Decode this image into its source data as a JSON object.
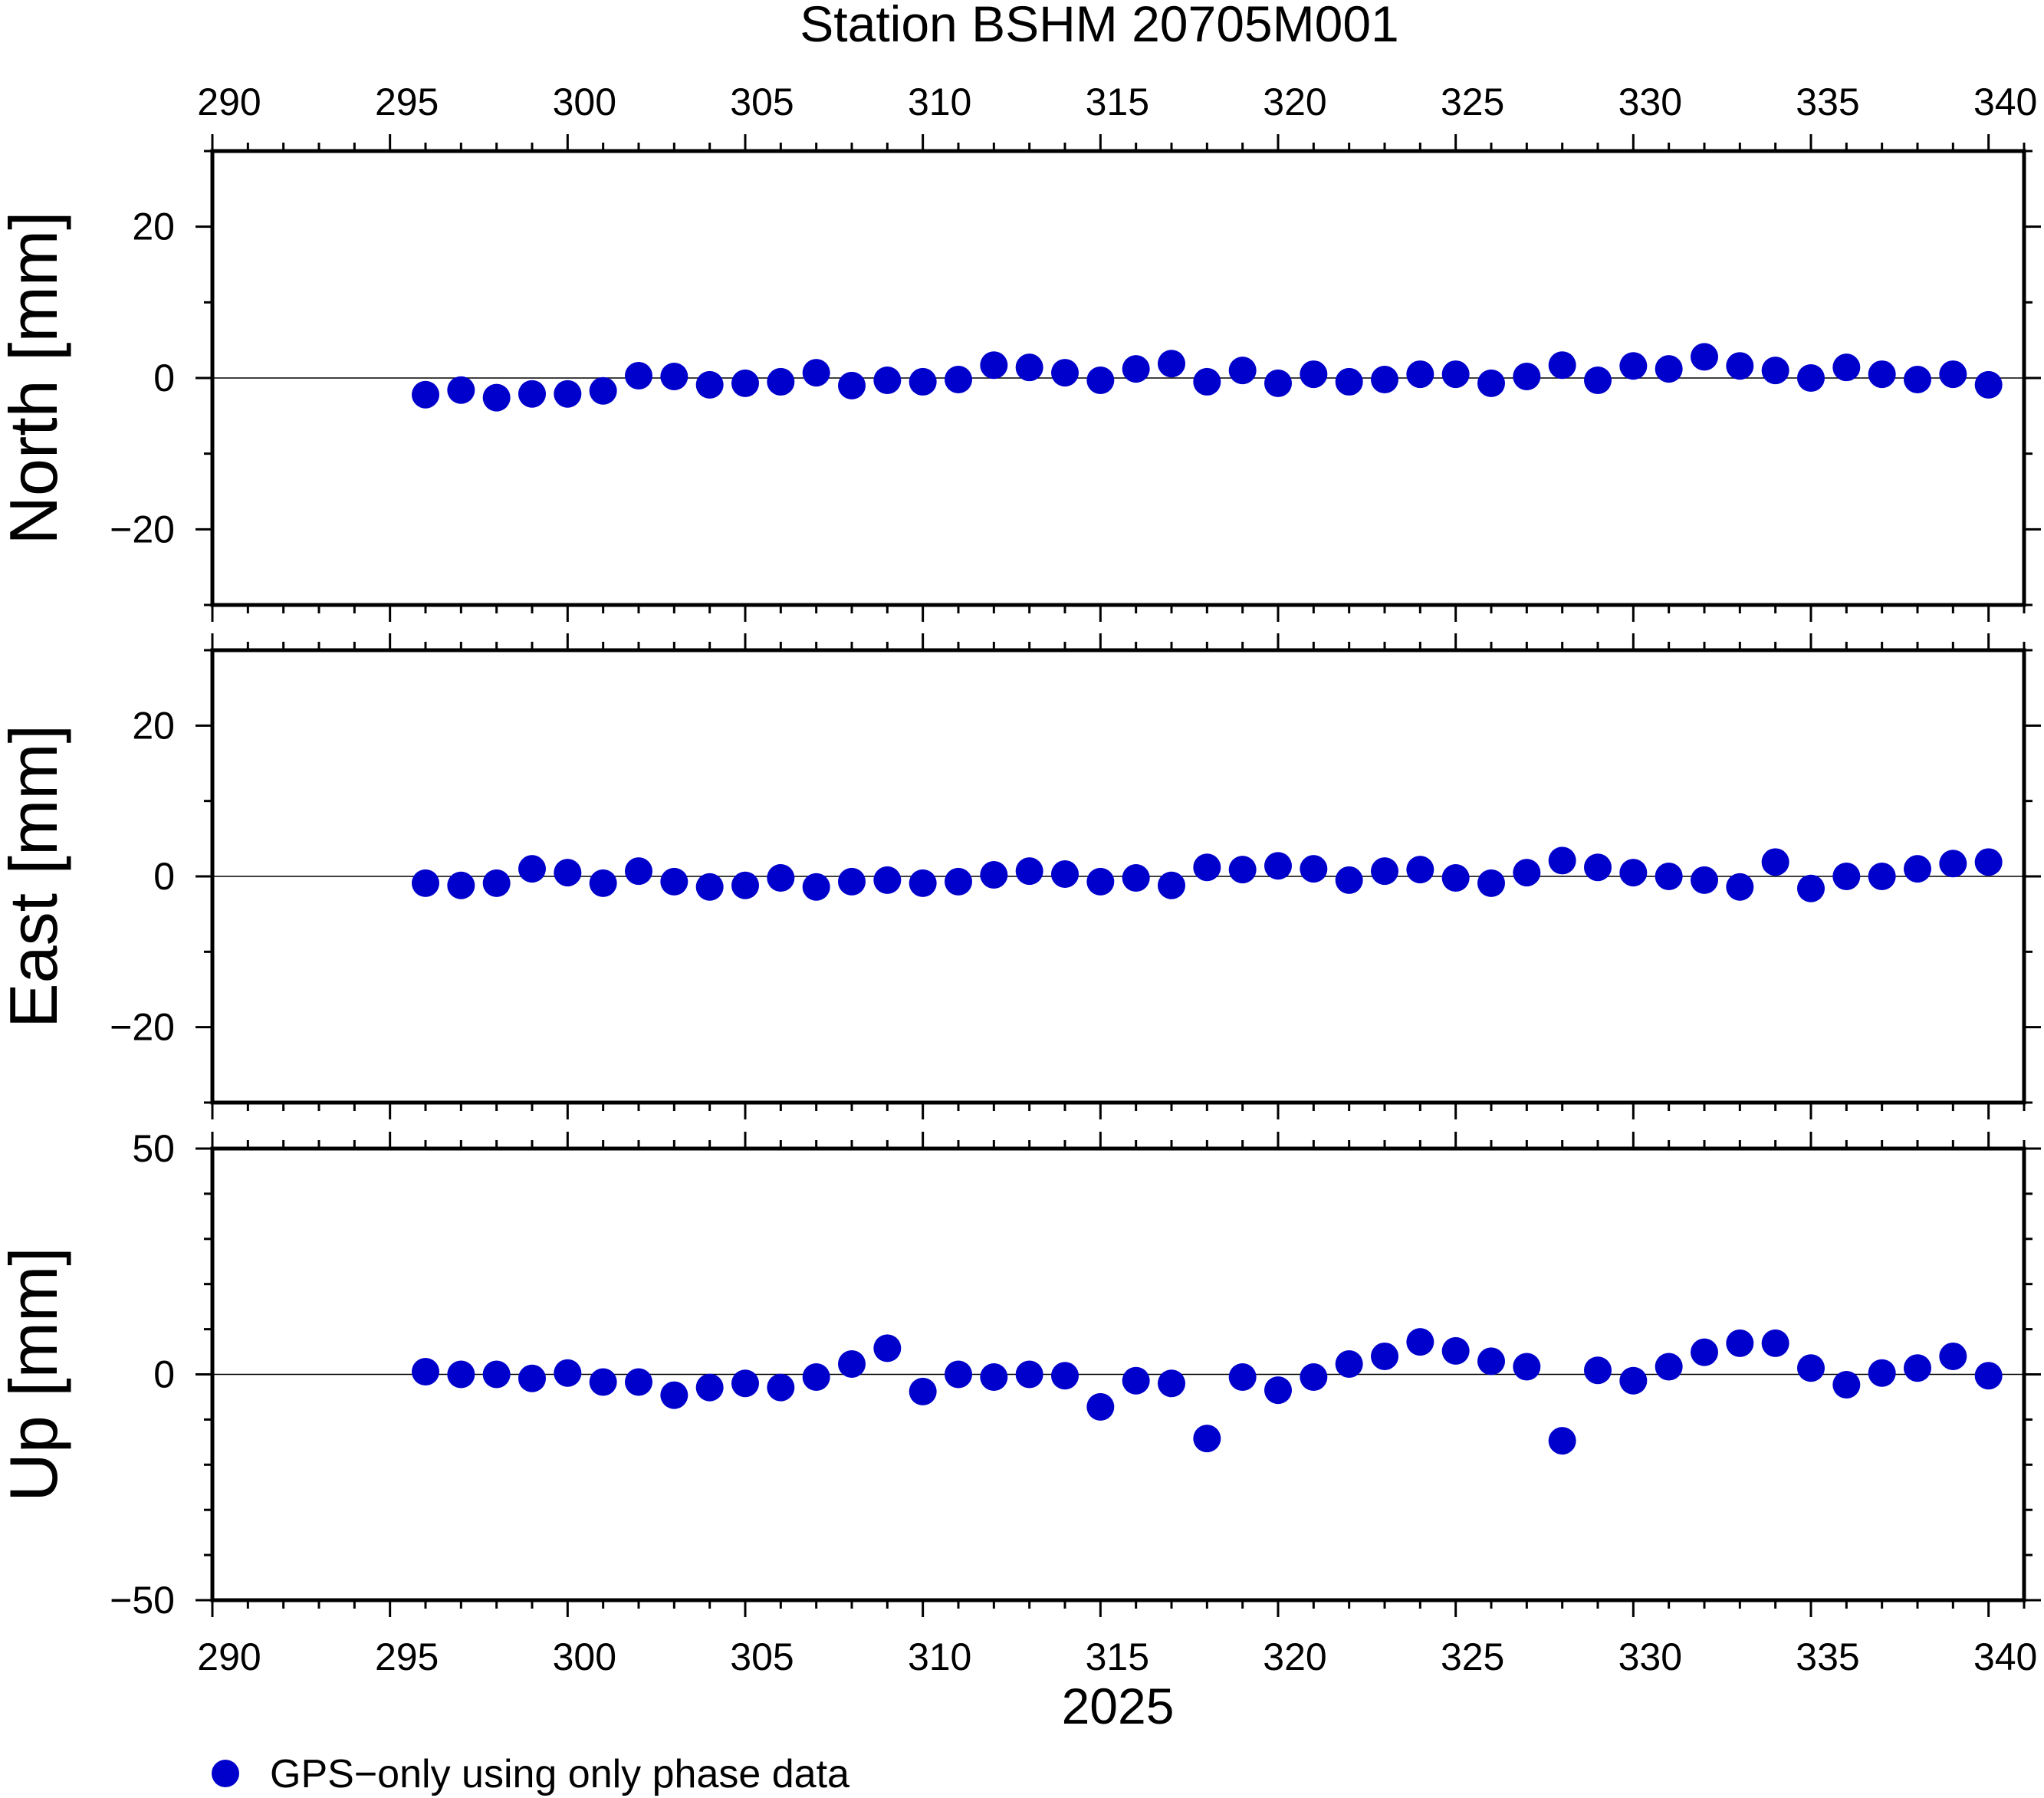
{
  "chart_data": {
    "type": "scatter",
    "title": "Station BSHM 20705M001",
    "xlabel": "2025",
    "xlim": [
      290,
      341
    ],
    "x_ticks": [
      290,
      295,
      300,
      305,
      310,
      315,
      320,
      325,
      330,
      335,
      340
    ],
    "x_tick_labels": [
      "290",
      "295",
      "300",
      "305",
      "310",
      "315",
      "320",
      "325",
      "330",
      "335",
      "340"
    ],
    "x_minor_step": 1,
    "marker_color": "#0000cc",
    "legend": {
      "label": "GPS−only using only phase data",
      "placement": "bottom-left"
    },
    "x": [
      296,
      297,
      298,
      299,
      300,
      301,
      302,
      303,
      304,
      305,
      306,
      307,
      308,
      309,
      310,
      311,
      312,
      313,
      314,
      315,
      316,
      317,
      318,
      319,
      320,
      321,
      322,
      323,
      324,
      325,
      326,
      327,
      328,
      329,
      330,
      331,
      332,
      333,
      334,
      335,
      336,
      337,
      338,
      339,
      340
    ],
    "panels": [
      {
        "name": "North",
        "ylabel": "North [mm]",
        "ylim": [
          -30,
          30
        ],
        "y_ticks": [
          -20,
          0,
          20
        ],
        "y_tick_labels": [
          "−20",
          "0",
          "20"
        ],
        "y_minor_step": 10,
        "values": [
          -2.2,
          -1.6,
          -2.6,
          -2.1,
          -2.1,
          -1.7,
          0.3,
          0.2,
          -0.9,
          -0.7,
          -0.5,
          0.7,
          -1.0,
          -0.3,
          -0.5,
          -0.2,
          1.7,
          1.4,
          0.7,
          -0.3,
          1.2,
          1.9,
          -0.5,
          1.0,
          -0.7,
          0.5,
          -0.5,
          -0.2,
          0.5,
          0.5,
          -0.7,
          0.2,
          1.7,
          -0.3,
          1.6,
          1.2,
          2.8,
          1.6,
          1.0,
          0.0,
          1.4,
          0.5,
          -0.2,
          0.5,
          -0.9
        ]
      },
      {
        "name": "East",
        "ylabel": "East [mm]",
        "ylim": [
          -30,
          30
        ],
        "y_ticks": [
          -20,
          0,
          20
        ],
        "y_tick_labels": [
          "−20",
          "0",
          "20"
        ],
        "y_minor_step": 10,
        "values": [
          -0.9,
          -1.2,
          -0.9,
          1.0,
          0.5,
          -0.9,
          0.7,
          -0.7,
          -1.4,
          -1.2,
          -0.2,
          -1.4,
          -0.7,
          -0.5,
          -0.9,
          -0.7,
          0.2,
          0.7,
          0.3,
          -0.7,
          -0.2,
          -1.2,
          1.2,
          0.9,
          1.4,
          1.0,
          -0.5,
          0.7,
          0.9,
          -0.2,
          -0.9,
          0.5,
          2.1,
          1.2,
          0.5,
          0.0,
          -0.5,
          -1.4,
          1.9,
          -1.6,
          0.0,
          0.0,
          1.0,
          1.7,
          1.9
        ]
      },
      {
        "name": "Up",
        "ylabel": "Up [mm]",
        "ylim": [
          -50,
          50
        ],
        "y_ticks": [
          -50,
          0,
          50
        ],
        "y_tick_labels": [
          "−50",
          "0",
          "50"
        ],
        "y_minor_step": 10,
        "values": [
          0.6,
          0.0,
          0.0,
          -0.9,
          0.3,
          -1.7,
          -1.7,
          -4.6,
          -2.9,
          -2.0,
          -2.9,
          -0.6,
          2.3,
          5.8,
          -3.8,
          0.0,
          -0.6,
          0.0,
          -0.3,
          -7.2,
          -1.4,
          -2.0,
          -14.2,
          -0.6,
          -3.5,
          -0.6,
          2.3,
          4.0,
          7.2,
          5.2,
          2.9,
          1.7,
          -14.7,
          0.9,
          -1.4,
          1.7,
          4.9,
          6.9,
          6.9,
          1.4,
          -2.3,
          0.3,
          1.4,
          4.0,
          -0.3
        ]
      }
    ]
  }
}
